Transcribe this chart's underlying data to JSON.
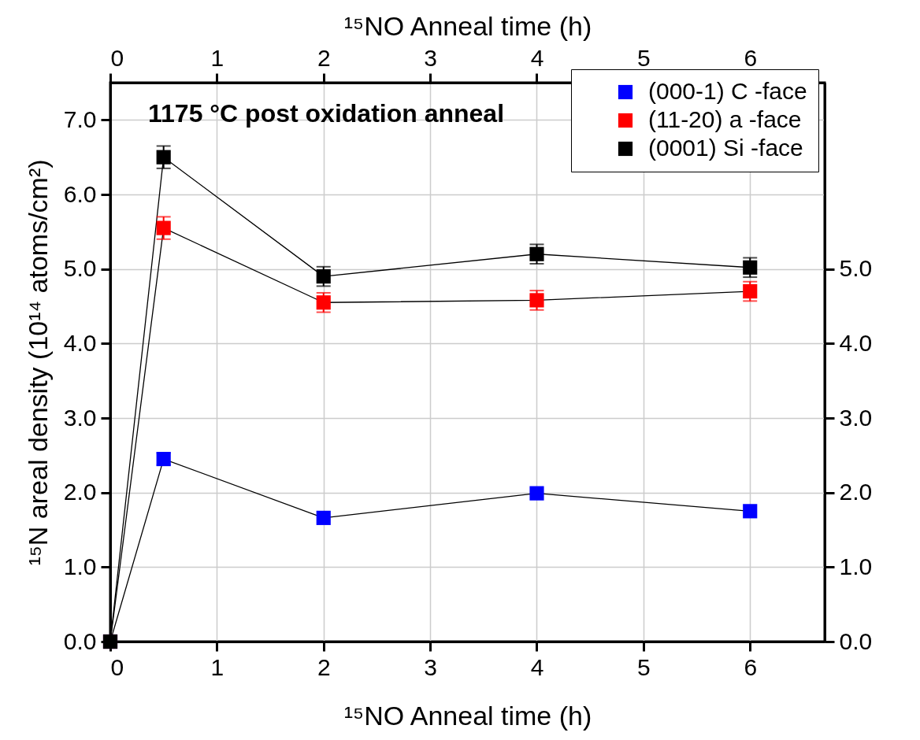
{
  "chart_data": {
    "type": "line",
    "marker": "square",
    "grid": true,
    "legend": "top right",
    "xlabel": "¹⁵NO Anneal time (h)",
    "x2label": "¹⁵NO Anneal time (h)",
    "ylabel": "¹⁵N areal density (10¹⁴ atoms/cm²)",
    "annotations": [
      "1175 °C post oxidation anneal"
    ],
    "xlim": [
      0,
      6.7
    ],
    "xticks": [
      0,
      1,
      2,
      3,
      4,
      5,
      6
    ],
    "x2lim": [
      0,
      6.7
    ],
    "x2ticks": [
      0,
      1,
      2,
      3,
      4,
      5,
      6
    ],
    "ylim": [
      0,
      7.5
    ],
    "yticks": [
      {
        "value": 0,
        "label": "0.0"
      },
      {
        "value": 1,
        "label": "1.0"
      },
      {
        "value": 2,
        "label": "2.0"
      },
      {
        "value": 3,
        "label": "3.0"
      },
      {
        "value": 4,
        "label": "4.0"
      },
      {
        "value": 5,
        "label": "5.0"
      },
      {
        "value": 6,
        "label": "6.0"
      },
      {
        "value": 7,
        "label": "7.0"
      }
    ],
    "y2lim": [
      0,
      7.5
    ],
    "y2ticks": [
      {
        "value": 0,
        "label": "0.0"
      },
      {
        "value": 1,
        "label": "1.0"
      },
      {
        "value": 2,
        "label": "2.0"
      },
      {
        "value": 3,
        "label": "3.0"
      },
      {
        "value": 4,
        "label": "4.0"
      },
      {
        "value": 5,
        "label": "5.0"
      }
    ],
    "x": [
      0,
      0.5,
      2,
      4,
      6
    ],
    "series": [
      {
        "name": "(000-1) C -face",
        "color": "#0000ff",
        "values": [
          0,
          2.45,
          1.66,
          1.99,
          1.75
        ],
        "errors": [
          null,
          0.08,
          null,
          null,
          null
        ]
      },
      {
        "name": "(11-20) a -face",
        "color": "#ff0000",
        "values": [
          0,
          5.55,
          4.55,
          4.58,
          4.7
        ],
        "errors": [
          null,
          0.15,
          0.13,
          0.13,
          0.13
        ]
      },
      {
        "name": "(0001) Si -face",
        "color": "#000000",
        "values": [
          0,
          6.5,
          4.9,
          5.2,
          5.02
        ],
        "errors": [
          null,
          0.15,
          0.13,
          0.13,
          0.13
        ]
      }
    ]
  }
}
